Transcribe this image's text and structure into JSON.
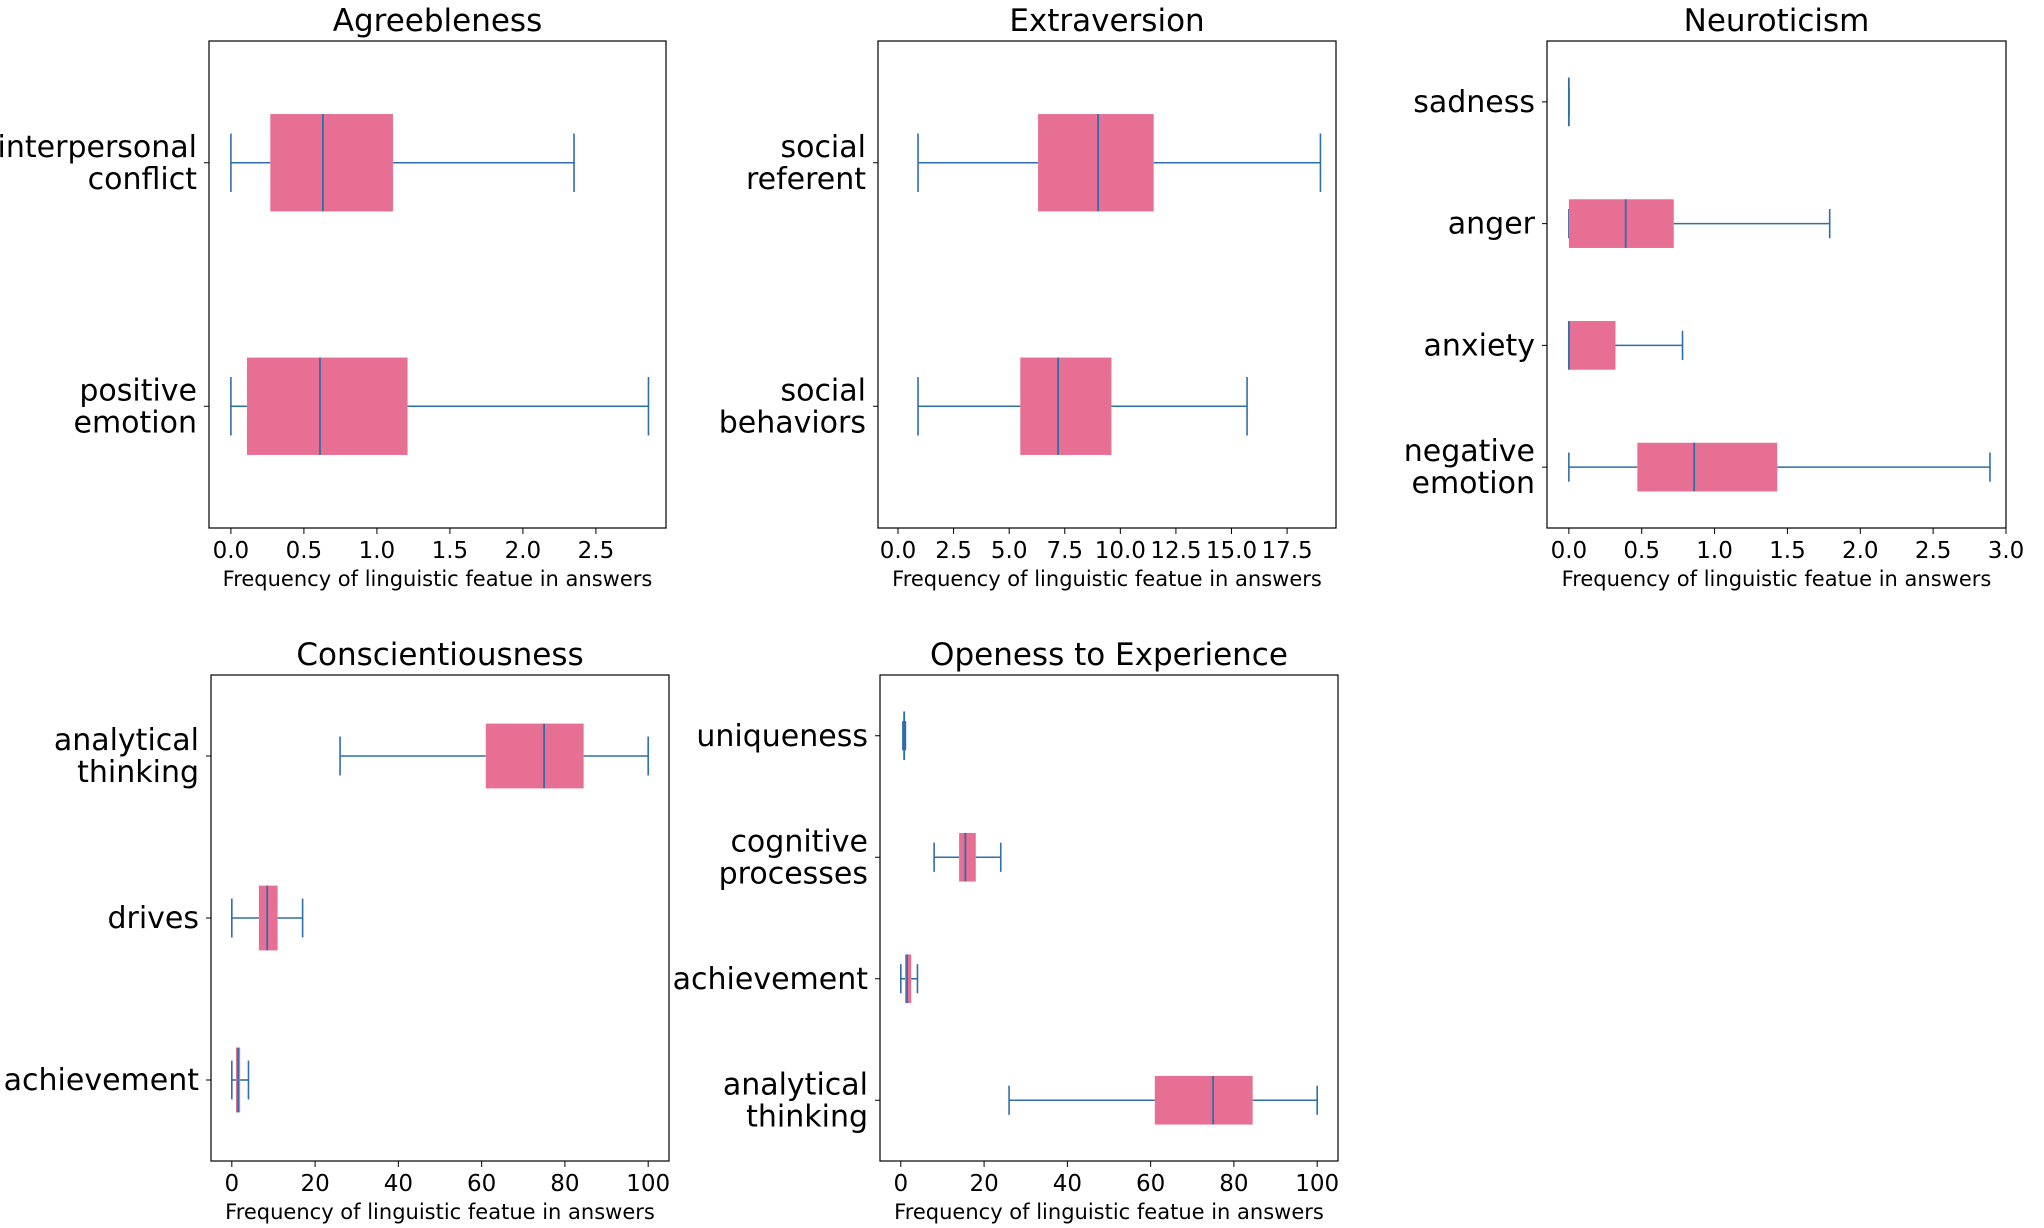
{
  "colors": {
    "box": "#e86f94",
    "line": "#2f6ea8",
    "frame": "#000000",
    "background": "#ffffff"
  },
  "chart_data": [
    {
      "type": "boxplot",
      "title": "Agreebleness",
      "xlabel": "Frequency of linguistic featue in answers",
      "xlim": [
        -0.15,
        2.98
      ],
      "xticks": [
        "0.0",
        "0.5",
        "1.0",
        "1.5",
        "2.0",
        "2.5"
      ],
      "categories": [
        {
          "label": "interpersonal\nconflict",
          "min": 0,
          "q1": 0.27,
          "median": 0.63,
          "q3": 1.11,
          "max": 2.35
        },
        {
          "label": "positive\nemotion",
          "min": 0,
          "q1": 0.11,
          "median": 0.61,
          "q3": 1.21,
          "max": 2.86
        }
      ]
    },
    {
      "type": "boxplot",
      "title": "Extraversion",
      "xlabel": "Frequency of linguistic featue in answers",
      "xlim": [
        -0.9,
        19.7
      ],
      "xticks": [
        "0.0",
        "2.5",
        "5.0",
        "7.5",
        "10.0",
        "12.5",
        "15.0",
        "17.5"
      ],
      "categories": [
        {
          "label": "social\nreferent",
          "min": 0.9,
          "q1": 6.3,
          "median": 9.0,
          "q3": 11.5,
          "max": 19.0
        },
        {
          "label": "social\nbehaviors",
          "min": 0.9,
          "q1": 5.5,
          "median": 7.2,
          "q3": 9.6,
          "max": 15.7
        }
      ]
    },
    {
      "type": "boxplot",
      "title": "Neuroticism",
      "xlabel": "Frequency of linguistic featue in answers",
      "xlim": [
        -0.15,
        3.0
      ],
      "xticks": [
        "0.0",
        "0.5",
        "1.0",
        "1.5",
        "2.0",
        "2.5",
        "3.0"
      ],
      "categories": [
        {
          "label": "sadness",
          "min": 0,
          "q1": 0,
          "median": 0,
          "q3": 0,
          "max": 0
        },
        {
          "label": "anger",
          "min": 0,
          "q1": 0,
          "median": 0.39,
          "q3": 0.72,
          "max": 1.79
        },
        {
          "label": "anxiety",
          "min": 0,
          "q1": 0,
          "median": 0,
          "q3": 0.32,
          "max": 0.78
        },
        {
          "label": "negative\nemotion",
          "min": 0,
          "q1": 0.47,
          "median": 0.86,
          "q3": 1.43,
          "max": 2.89
        }
      ]
    },
    {
      "type": "boxplot",
      "title": "Conscientiousness",
      "xlabel": "Frequency of linguistic featue in answers",
      "xlim": [
        -5,
        105
      ],
      "xticks": [
        "0",
        "20",
        "40",
        "60",
        "80",
        "100"
      ],
      "categories": [
        {
          "label": "analytical\nthinking",
          "min": 26,
          "q1": 61,
          "median": 75,
          "q3": 84.5,
          "max": 100
        },
        {
          "label": "drives",
          "min": 0,
          "q1": 6.5,
          "median": 8.5,
          "q3": 11,
          "max": 17
        },
        {
          "label": "achievement",
          "min": 0,
          "q1": 1,
          "median": 1.5,
          "q3": 2,
          "max": 4
        }
      ]
    },
    {
      "type": "boxplot",
      "title": "Openess to Experience",
      "xlabel": "Frequency of linguistic featue in answers",
      "xlim": [
        -5,
        105
      ],
      "xticks": [
        "0",
        "20",
        "40",
        "60",
        "80",
        "100"
      ],
      "categories": [
        {
          "label": "uniqueness",
          "min": 0.5,
          "q1": 0.7,
          "median": 0.8,
          "q3": 0.9,
          "max": 1.1
        },
        {
          "label": "cognitive\nprocesses",
          "min": 8,
          "q1": 14,
          "median": 15.5,
          "q3": 18,
          "max": 24
        },
        {
          "label": "achievement",
          "min": 0,
          "q1": 1,
          "median": 1.5,
          "q3": 2.5,
          "max": 4
        },
        {
          "label": "analytical\nthinking",
          "min": 26,
          "q1": 61,
          "median": 75,
          "q3": 84.5,
          "max": 100
        }
      ]
    }
  ]
}
